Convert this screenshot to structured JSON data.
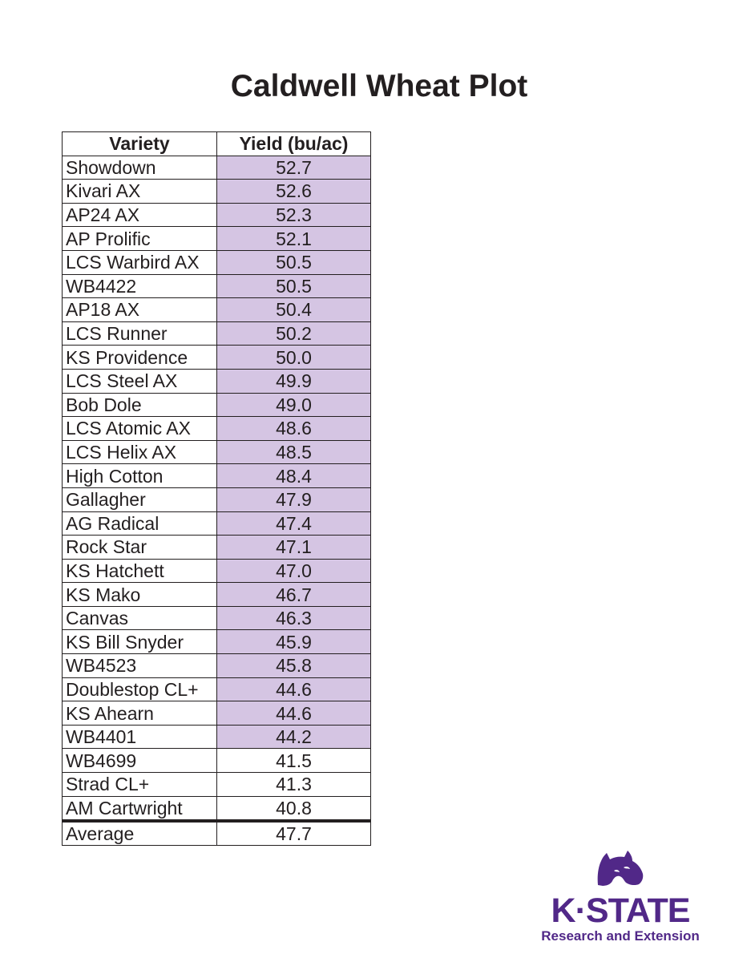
{
  "title": "Caldwell Wheat Plot",
  "table": {
    "headers": [
      "Variety",
      "Yield (bu/ac)"
    ],
    "rows": [
      {
        "variety": "Showdown",
        "yield": "52.7",
        "highlight": true
      },
      {
        "variety": "Kivari AX",
        "yield": "52.6",
        "highlight": true
      },
      {
        "variety": "AP24 AX",
        "yield": "52.3",
        "highlight": true
      },
      {
        "variety": "AP Prolific",
        "yield": "52.1",
        "highlight": true
      },
      {
        "variety": "LCS Warbird AX",
        "yield": "50.5",
        "highlight": true
      },
      {
        "variety": "WB4422",
        "yield": "50.5",
        "highlight": true
      },
      {
        "variety": "AP18 AX",
        "yield": "50.4",
        "highlight": true
      },
      {
        "variety": "LCS Runner",
        "yield": "50.2",
        "highlight": true
      },
      {
        "variety": "KS Providence",
        "yield": "50.0",
        "highlight": true
      },
      {
        "variety": "LCS Steel AX",
        "yield": "49.9",
        "highlight": true
      },
      {
        "variety": "Bob Dole",
        "yield": "49.0",
        "highlight": true
      },
      {
        "variety": "LCS Atomic AX",
        "yield": "48.6",
        "highlight": true
      },
      {
        "variety": "LCS Helix AX",
        "yield": "48.5",
        "highlight": true
      },
      {
        "variety": "High Cotton",
        "yield": "48.4",
        "highlight": true
      },
      {
        "variety": "Gallagher",
        "yield": "47.9",
        "highlight": true
      },
      {
        "variety": "AG Radical",
        "yield": "47.4",
        "highlight": true
      },
      {
        "variety": "Rock Star",
        "yield": "47.1",
        "highlight": true
      },
      {
        "variety": "KS Hatchett",
        "yield": "47.0",
        "highlight": true
      },
      {
        "variety": "KS Mako",
        "yield": "46.7",
        "highlight": true
      },
      {
        "variety": "Canvas",
        "yield": "46.3",
        "highlight": true
      },
      {
        "variety": "KS Bill Snyder",
        "yield": "45.9",
        "highlight": true
      },
      {
        "variety": "WB4523",
        "yield": "45.8",
        "highlight": true
      },
      {
        "variety": "Doublestop CL+",
        "yield": "44.6",
        "highlight": true
      },
      {
        "variety": "KS Ahearn",
        "yield": "44.6",
        "highlight": true
      },
      {
        "variety": "WB4401",
        "yield": "44.2",
        "highlight": true
      },
      {
        "variety": "WB4699",
        "yield": "41.5",
        "highlight": false
      },
      {
        "variety": "Strad CL+",
        "yield": "41.3",
        "highlight": false
      },
      {
        "variety": "AM Cartwright",
        "yield": "40.8",
        "highlight": false
      }
    ],
    "average": {
      "label": "Average",
      "yield": "47.7"
    }
  },
  "logo": {
    "wordmark": "K·STATE",
    "subtitle": "Research and Extension",
    "icon": "wildcat-icon"
  },
  "colors": {
    "text": "#231f20",
    "highlight": "#d5c5e3",
    "brand_purple": "#512888"
  }
}
